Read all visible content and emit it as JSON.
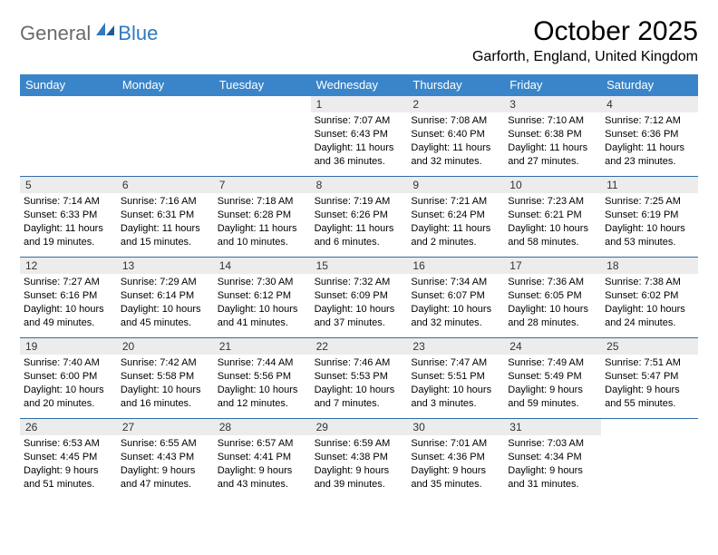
{
  "logo": {
    "text1": "General",
    "text2": "Blue"
  },
  "title": "October 2025",
  "location": "Garforth, England, United Kingdom",
  "colors": {
    "header_bg": "#3a85c9",
    "header_text": "#ffffff",
    "week_border": "#2f6da6",
    "daynum_bg": "#ececec",
    "logo_gray": "#6a6a6a",
    "logo_blue": "#2f7ac0",
    "body_text": "#000000",
    "page_bg": "#ffffff"
  },
  "typography": {
    "title_fontsize": 30,
    "location_fontsize": 16,
    "dow_fontsize": 13,
    "daynum_fontsize": 12,
    "body_fontsize": 11
  },
  "dow": [
    "Sunday",
    "Monday",
    "Tuesday",
    "Wednesday",
    "Thursday",
    "Friday",
    "Saturday"
  ],
  "weeks": [
    [
      {
        "n": "",
        "sunrise": "",
        "sunset": "",
        "daylight": ""
      },
      {
        "n": "",
        "sunrise": "",
        "sunset": "",
        "daylight": ""
      },
      {
        "n": "",
        "sunrise": "",
        "sunset": "",
        "daylight": ""
      },
      {
        "n": "1",
        "sunrise": "7:07 AM",
        "sunset": "6:43 PM",
        "daylight": "11 hours and 36 minutes."
      },
      {
        "n": "2",
        "sunrise": "7:08 AM",
        "sunset": "6:40 PM",
        "daylight": "11 hours and 32 minutes."
      },
      {
        "n": "3",
        "sunrise": "7:10 AM",
        "sunset": "6:38 PM",
        "daylight": "11 hours and 27 minutes."
      },
      {
        "n": "4",
        "sunrise": "7:12 AM",
        "sunset": "6:36 PM",
        "daylight": "11 hours and 23 minutes."
      }
    ],
    [
      {
        "n": "5",
        "sunrise": "7:14 AM",
        "sunset": "6:33 PM",
        "daylight": "11 hours and 19 minutes."
      },
      {
        "n": "6",
        "sunrise": "7:16 AM",
        "sunset": "6:31 PM",
        "daylight": "11 hours and 15 minutes."
      },
      {
        "n": "7",
        "sunrise": "7:18 AM",
        "sunset": "6:28 PM",
        "daylight": "11 hours and 10 minutes."
      },
      {
        "n": "8",
        "sunrise": "7:19 AM",
        "sunset": "6:26 PM",
        "daylight": "11 hours and 6 minutes."
      },
      {
        "n": "9",
        "sunrise": "7:21 AM",
        "sunset": "6:24 PM",
        "daylight": "11 hours and 2 minutes."
      },
      {
        "n": "10",
        "sunrise": "7:23 AM",
        "sunset": "6:21 PM",
        "daylight": "10 hours and 58 minutes."
      },
      {
        "n": "11",
        "sunrise": "7:25 AM",
        "sunset": "6:19 PM",
        "daylight": "10 hours and 53 minutes."
      }
    ],
    [
      {
        "n": "12",
        "sunrise": "7:27 AM",
        "sunset": "6:16 PM",
        "daylight": "10 hours and 49 minutes."
      },
      {
        "n": "13",
        "sunrise": "7:29 AM",
        "sunset": "6:14 PM",
        "daylight": "10 hours and 45 minutes."
      },
      {
        "n": "14",
        "sunrise": "7:30 AM",
        "sunset": "6:12 PM",
        "daylight": "10 hours and 41 minutes."
      },
      {
        "n": "15",
        "sunrise": "7:32 AM",
        "sunset": "6:09 PM",
        "daylight": "10 hours and 37 minutes."
      },
      {
        "n": "16",
        "sunrise": "7:34 AM",
        "sunset": "6:07 PM",
        "daylight": "10 hours and 32 minutes."
      },
      {
        "n": "17",
        "sunrise": "7:36 AM",
        "sunset": "6:05 PM",
        "daylight": "10 hours and 28 minutes."
      },
      {
        "n": "18",
        "sunrise": "7:38 AM",
        "sunset": "6:02 PM",
        "daylight": "10 hours and 24 minutes."
      }
    ],
    [
      {
        "n": "19",
        "sunrise": "7:40 AM",
        "sunset": "6:00 PM",
        "daylight": "10 hours and 20 minutes."
      },
      {
        "n": "20",
        "sunrise": "7:42 AM",
        "sunset": "5:58 PM",
        "daylight": "10 hours and 16 minutes."
      },
      {
        "n": "21",
        "sunrise": "7:44 AM",
        "sunset": "5:56 PM",
        "daylight": "10 hours and 12 minutes."
      },
      {
        "n": "22",
        "sunrise": "7:46 AM",
        "sunset": "5:53 PM",
        "daylight": "10 hours and 7 minutes."
      },
      {
        "n": "23",
        "sunrise": "7:47 AM",
        "sunset": "5:51 PM",
        "daylight": "10 hours and 3 minutes."
      },
      {
        "n": "24",
        "sunrise": "7:49 AM",
        "sunset": "5:49 PM",
        "daylight": "9 hours and 59 minutes."
      },
      {
        "n": "25",
        "sunrise": "7:51 AM",
        "sunset": "5:47 PM",
        "daylight": "9 hours and 55 minutes."
      }
    ],
    [
      {
        "n": "26",
        "sunrise": "6:53 AM",
        "sunset": "4:45 PM",
        "daylight": "9 hours and 51 minutes."
      },
      {
        "n": "27",
        "sunrise": "6:55 AM",
        "sunset": "4:43 PM",
        "daylight": "9 hours and 47 minutes."
      },
      {
        "n": "28",
        "sunrise": "6:57 AM",
        "sunset": "4:41 PM",
        "daylight": "9 hours and 43 minutes."
      },
      {
        "n": "29",
        "sunrise": "6:59 AM",
        "sunset": "4:38 PM",
        "daylight": "9 hours and 39 minutes."
      },
      {
        "n": "30",
        "sunrise": "7:01 AM",
        "sunset": "4:36 PM",
        "daylight": "9 hours and 35 minutes."
      },
      {
        "n": "31",
        "sunrise": "7:03 AM",
        "sunset": "4:34 PM",
        "daylight": "9 hours and 31 minutes."
      },
      {
        "n": "",
        "sunrise": "",
        "sunset": "",
        "daylight": ""
      }
    ]
  ],
  "labels": {
    "sunrise": "Sunrise: ",
    "sunset": "Sunset: ",
    "daylight": "Daylight: "
  }
}
